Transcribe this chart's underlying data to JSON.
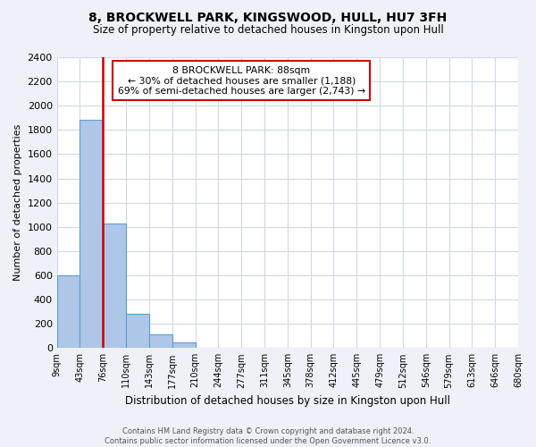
{
  "title": "8, BROCKWELL PARK, KINGSWOOD, HULL, HU7 3FH",
  "subtitle": "Size of property relative to detached houses in Kingston upon Hull",
  "bar_heights": [
    600,
    1880,
    1030,
    280,
    115,
    50,
    0,
    0,
    0,
    0,
    0,
    0,
    0,
    0,
    0,
    0,
    0,
    0,
    0,
    0
  ],
  "bin_labels": [
    "9sqm",
    "43sqm",
    "76sqm",
    "110sqm",
    "143sqm",
    "177sqm",
    "210sqm",
    "244sqm",
    "277sqm",
    "311sqm",
    "345sqm",
    "378sqm",
    "412sqm",
    "445sqm",
    "479sqm",
    "512sqm",
    "546sqm",
    "579sqm",
    "613sqm",
    "646sqm",
    "680sqm"
  ],
  "bar_color": "#aec6e8",
  "bar_edge_color": "#5a9fd4",
  "vline_color": "#cc0000",
  "vline_x": 1.5,
  "annotation_title": "8 BROCKWELL PARK: 88sqm",
  "annotation_line1": "← 30% of detached houses are smaller (1,188)",
  "annotation_line2": "69% of semi-detached houses are larger (2,743) →",
  "annotation_box_color": "#ffffff",
  "annotation_border_color": "#cc0000",
  "ylabel": "Number of detached properties",
  "xlabel": "Distribution of detached houses by size in Kingston upon Hull",
  "ylim": [
    0,
    2400
  ],
  "yticks": [
    0,
    200,
    400,
    600,
    800,
    1000,
    1200,
    1400,
    1600,
    1800,
    2000,
    2200,
    2400
  ],
  "footer_line1": "Contains HM Land Registry data © Crown copyright and database right 2024.",
  "footer_line2": "Contains public sector information licensed under the Open Government Licence v3.0.",
  "bg_color": "#eef2f8",
  "plot_bg_color": "#ffffff",
  "grid_color": "#d0d8e8"
}
